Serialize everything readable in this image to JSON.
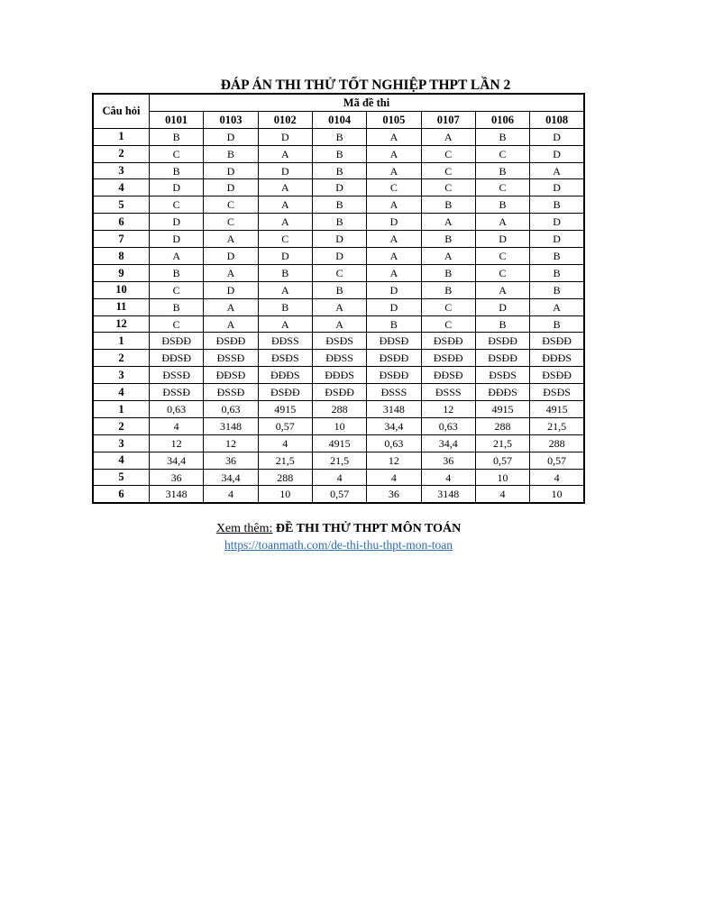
{
  "page": {
    "title": "ĐÁP ÁN THI THỬ TỐT NGHIỆP THPT LẦN 2"
  },
  "table": {
    "question_col_header": "Câu hỏi",
    "group_header": "Mã đề thi",
    "exam_codes": [
      "0101",
      "0103",
      "0102",
      "0104",
      "0105",
      "0107",
      "0106",
      "0108"
    ],
    "sections": [
      {
        "name": "multiple-choice",
        "rows": [
          {
            "question": "1",
            "answers": [
              "B",
              "D",
              "D",
              "B",
              "A",
              "A",
              "B",
              "D"
            ]
          },
          {
            "question": "2",
            "answers": [
              "C",
              "B",
              "A",
              "B",
              "A",
              "C",
              "C",
              "D"
            ]
          },
          {
            "question": "3",
            "answers": [
              "B",
              "D",
              "D",
              "B",
              "A",
              "C",
              "B",
              "A"
            ]
          },
          {
            "question": "4",
            "answers": [
              "D",
              "D",
              "A",
              "D",
              "C",
              "C",
              "C",
              "D"
            ]
          },
          {
            "question": "5",
            "answers": [
              "C",
              "C",
              "A",
              "B",
              "A",
              "B",
              "B",
              "B"
            ]
          },
          {
            "question": "6",
            "answers": [
              "D",
              "C",
              "A",
              "B",
              "D",
              "A",
              "A",
              "D"
            ]
          },
          {
            "question": "7",
            "answers": [
              "D",
              "A",
              "C",
              "D",
              "A",
              "B",
              "D",
              "D"
            ]
          },
          {
            "question": "8",
            "answers": [
              "A",
              "D",
              "D",
              "D",
              "A",
              "A",
              "C",
              "B"
            ]
          },
          {
            "question": "9",
            "answers": [
              "B",
              "A",
              "B",
              "C",
              "A",
              "B",
              "C",
              "B"
            ]
          },
          {
            "question": "10",
            "answers": [
              "C",
              "D",
              "A",
              "B",
              "D",
              "B",
              "A",
              "B"
            ]
          },
          {
            "question": "11",
            "answers": [
              "B",
              "A",
              "B",
              "A",
              "D",
              "C",
              "D",
              "A"
            ]
          },
          {
            "question": "12",
            "answers": [
              "C",
              "A",
              "A",
              "A",
              "B",
              "C",
              "B",
              "B"
            ]
          }
        ]
      },
      {
        "name": "true-false",
        "rows": [
          {
            "question": "1",
            "answers": [
              "ĐSĐĐ",
              "ĐSĐĐ",
              "ĐĐSS",
              "ĐSĐS",
              "ĐĐSĐ",
              "ĐSĐĐ",
              "ĐSĐĐ",
              "ĐSĐĐ"
            ]
          },
          {
            "question": "2",
            "answers": [
              "ĐĐSĐ",
              "ĐSSĐ",
              "ĐSĐS",
              "ĐĐSS",
              "ĐSĐĐ",
              "ĐSĐĐ",
              "ĐSĐĐ",
              "ĐĐĐS"
            ]
          },
          {
            "question": "3",
            "answers": [
              "ĐSSĐ",
              "ĐĐSĐ",
              "ĐĐĐS",
              "ĐĐĐS",
              "ĐSĐĐ",
              "ĐĐSĐ",
              "ĐSĐS",
              "ĐSĐĐ"
            ]
          },
          {
            "question": "4",
            "answers": [
              "ĐSSĐ",
              "ĐSSĐ",
              "ĐSĐĐ",
              "ĐSĐĐ",
              "ĐSSS",
              "ĐSSS",
              "ĐĐĐS",
              "ĐSĐS"
            ]
          }
        ]
      },
      {
        "name": "short-answer",
        "rows": [
          {
            "question": "1",
            "answers": [
              "0,63",
              "0,63",
              "4915",
              "288",
              "3148",
              "12",
              "4915",
              "4915"
            ]
          },
          {
            "question": "2",
            "answers": [
              "4",
              "3148",
              "0,57",
              "10",
              "34,4",
              "0,63",
              "288",
              "21,5"
            ]
          },
          {
            "question": "3",
            "answers": [
              "12",
              "12",
              "4",
              "4915",
              "0,63",
              "34,4",
              "21,5",
              "288"
            ]
          },
          {
            "question": "4",
            "answers": [
              "34,4",
              "36",
              "21,5",
              "21,5",
              "12",
              "36",
              "0,57",
              "0,57"
            ]
          },
          {
            "question": "5",
            "answers": [
              "36",
              "34,4",
              "288",
              "4",
              "4",
              "4",
              "10",
              "4"
            ]
          },
          {
            "question": "6",
            "answers": [
              "3148",
              "4",
              "10",
              "0,57",
              "36",
              "3148",
              "4",
              "10"
            ]
          }
        ]
      }
    ]
  },
  "footer": {
    "see_more_label": "Xem thêm:",
    "see_more_title": "ĐỀ THI THỬ THPT MÔN TOÁN",
    "link_text": "https://toanmath.com/de-thi-thu-thpt-mon-toan"
  },
  "colors": {
    "text": "#000000",
    "border": "#000000",
    "background": "#ffffff",
    "link": "#2d6cb4"
  }
}
